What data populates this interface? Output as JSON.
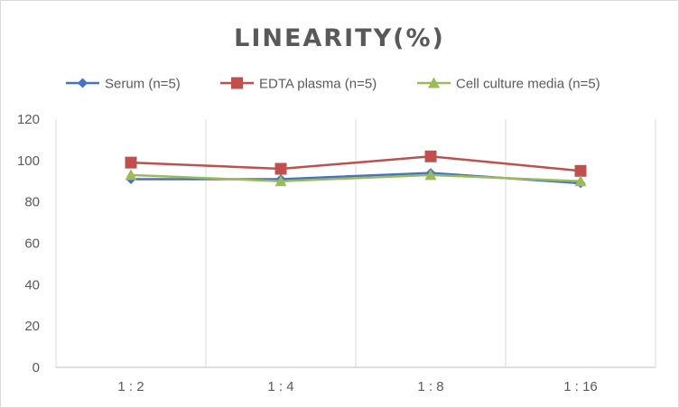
{
  "chart_data": {
    "type": "line",
    "title": "LINEARITY(%)",
    "categories": [
      "1:2",
      "1:4",
      "1:8",
      "1:16"
    ],
    "ylim": [
      0,
      120
    ],
    "yticks": [
      0,
      20,
      40,
      60,
      80,
      100,
      120
    ],
    "grid": "vertical",
    "legend": "top",
    "series": [
      {
        "name": "Serum (n=5)",
        "values": [
          91,
          91,
          94,
          89
        ],
        "color": "#4472c4",
        "marker": "diamond"
      },
      {
        "name": "EDTA plasma (n=5)",
        "values": [
          99,
          96,
          102,
          95
        ],
        "color": "#c0504d",
        "marker": "square"
      },
      {
        "name": "Cell culture media (n=5)",
        "values": [
          93,
          90,
          93,
          90
        ],
        "color": "#9bbb59",
        "marker": "triangle"
      }
    ]
  }
}
